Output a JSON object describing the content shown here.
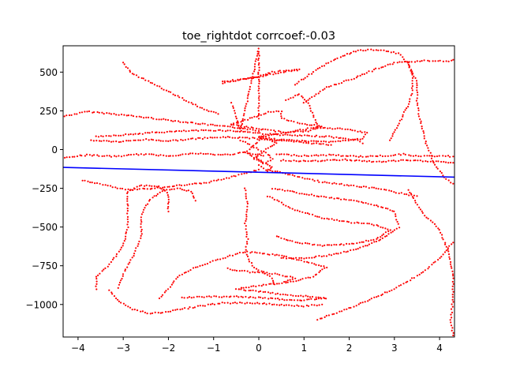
{
  "chart_data": {
    "type": "scatter",
    "title": "toe_rightdot corrcoef:-0.03",
    "xlabel": "",
    "ylabel": "",
    "xlim": [
      -4.33,
      4.33
    ],
    "ylim": [
      -1210,
      670
    ],
    "x_ticks": [
      -4,
      -3,
      -2,
      -1,
      0,
      1,
      2,
      3,
      4
    ],
    "x_tick_labels": [
      "−4",
      "−3",
      "−2",
      "−1",
      "0",
      "1",
      "2",
      "3",
      "4"
    ],
    "y_ticks": [
      -1000,
      -750,
      -500,
      -250,
      0,
      250,
      500
    ],
    "y_tick_labels": [
      "−1000",
      "−750",
      "−500",
      "−250",
      "0",
      "250",
      "500"
    ],
    "grid": false,
    "legend": "none",
    "colors": {
      "points": "#ff0000",
      "fit_line": "#0000ff",
      "axes": "#000000",
      "background": "#ffffff"
    },
    "fit_line": {
      "x": [
        -4.33,
        4.33
      ],
      "y": [
        -115,
        -178
      ]
    },
    "point_paths": [
      {
        "label": "upper horizontal band",
        "points": [
          [
            -4.3,
            215
          ],
          [
            -3.8,
            245
          ],
          [
            -3.2,
            230
          ],
          [
            -2.6,
            210
          ],
          [
            -2.0,
            190
          ],
          [
            -1.4,
            170
          ],
          [
            -0.8,
            150
          ],
          [
            -0.3,
            135
          ],
          [
            0.0,
            120
          ]
        ]
      },
      {
        "label": "band near 100",
        "points": [
          [
            -3.6,
            85
          ],
          [
            -3.0,
            95
          ],
          [
            -2.3,
            110
          ],
          [
            -1.6,
            120
          ],
          [
            -0.9,
            125
          ],
          [
            -0.3,
            115
          ],
          [
            0.2,
            100
          ],
          [
            0.8,
            90
          ],
          [
            1.5,
            85
          ],
          [
            2.2,
            60
          ],
          [
            2.3,
            40
          ]
        ]
      },
      {
        "label": "band near 60",
        "points": [
          [
            -3.7,
            60
          ],
          [
            -3.1,
            50
          ],
          [
            -2.5,
            65
          ],
          [
            -2.0,
            55
          ],
          [
            -1.4,
            70
          ],
          [
            -0.8,
            80
          ],
          [
            -0.2,
            75
          ],
          [
            0.4,
            60
          ],
          [
            1.0,
            45
          ],
          [
            1.6,
            30
          ]
        ]
      },
      {
        "label": "lower-left band near -40",
        "points": [
          [
            -4.3,
            -50
          ],
          [
            -3.8,
            -35
          ],
          [
            -3.2,
            -45
          ],
          [
            -2.6,
            -30
          ],
          [
            -2.0,
            -40
          ],
          [
            -1.4,
            -25
          ],
          [
            -0.8,
            -35
          ],
          [
            -0.3,
            -20
          ],
          [
            0.1,
            -40
          ]
        ]
      },
      {
        "label": "right band near -40",
        "points": [
          [
            0.4,
            -30
          ],
          [
            1.0,
            -40
          ],
          [
            1.6,
            -35
          ],
          [
            2.2,
            -45
          ],
          [
            2.8,
            -40
          ],
          [
            3.2,
            -30
          ],
          [
            3.6,
            -45
          ],
          [
            4.0,
            -40
          ],
          [
            4.3,
            -45
          ]
        ]
      },
      {
        "label": "right band near -70",
        "points": [
          [
            0.5,
            -70
          ],
          [
            1.2,
            -75
          ],
          [
            1.9,
            -65
          ],
          [
            2.6,
            -80
          ],
          [
            3.2,
            -70
          ],
          [
            3.8,
            -75
          ],
          [
            4.3,
            -85
          ]
        ]
      },
      {
        "label": "loop around 150",
        "points": [
          [
            -0.6,
            160
          ],
          [
            -0.2,
            200
          ],
          [
            0.2,
            240
          ],
          [
            0.5,
            250
          ],
          [
            0.5,
            200
          ],
          [
            0.9,
            170
          ],
          [
            1.4,
            150
          ],
          [
            1.1,
            120
          ],
          [
            0.6,
            110
          ],
          [
            0.1,
            130
          ],
          [
            -0.6,
            160
          ]
        ]
      },
      {
        "label": "loop around 100 right",
        "points": [
          [
            0.0,
            80
          ],
          [
            0.6,
            110
          ],
          [
            1.2,
            140
          ],
          [
            1.8,
            135
          ],
          [
            2.4,
            110
          ],
          [
            2.3,
            70
          ],
          [
            1.7,
            50
          ],
          [
            1.0,
            55
          ],
          [
            0.4,
            65
          ],
          [
            0.0,
            80
          ]
        ]
      },
      {
        "label": "upper ridge 400-520",
        "points": [
          [
            -0.8,
            430
          ],
          [
            -0.4,
            450
          ],
          [
            0.0,
            470
          ],
          [
            0.3,
            500
          ],
          [
            0.6,
            510
          ],
          [
            0.9,
            515
          ],
          [
            0.6,
            505
          ],
          [
            0.2,
            480
          ],
          [
            -0.3,
            455
          ],
          [
            -0.8,
            440
          ]
        ]
      },
      {
        "label": "vertical spine",
        "points": [
          [
            -0.3,
            -250
          ],
          [
            -0.25,
            -370
          ],
          [
            -0.3,
            -480
          ],
          [
            -0.25,
            -580
          ],
          [
            -0.3,
            -660
          ],
          [
            -0.2,
            -720
          ],
          [
            -0.1,
            -760
          ],
          [
            0.1,
            -790
          ],
          [
            0.3,
            -830
          ],
          [
            0.35,
            -870
          ]
        ]
      },
      {
        "label": "lower bundle",
        "points": [
          [
            -0.7,
            -770
          ],
          [
            -0.2,
            -790
          ],
          [
            0.3,
            -800
          ],
          [
            0.8,
            -830
          ],
          [
            0.5,
            -860
          ],
          [
            0.0,
            -880
          ],
          [
            -0.5,
            -900
          ],
          [
            0.1,
            -920
          ],
          [
            0.7,
            -940
          ],
          [
            1.2,
            -950
          ],
          [
            1.5,
            -960
          ],
          [
            0.9,
            -975
          ],
          [
            0.2,
            -960
          ],
          [
            -0.5,
            -950
          ],
          [
            -1.1,
            -950
          ],
          [
            -1.7,
            -955
          ]
        ]
      },
      {
        "label": "outer lower loop",
        "points": [
          [
            -3.3,
            -910
          ],
          [
            -3.1,
            -980
          ],
          [
            -2.8,
            -1030
          ],
          [
            -2.4,
            -1060
          ],
          [
            -1.9,
            -1040
          ],
          [
            -1.3,
            -1010
          ],
          [
            -0.8,
            -990
          ],
          [
            -0.2,
            -990
          ],
          [
            0.4,
            -1000
          ],
          [
            1.0,
            -1010
          ],
          [
            1.4,
            -1000
          ]
        ]
      },
      {
        "label": "left arch",
        "points": [
          [
            -3.6,
            -900
          ],
          [
            -3.6,
            -820
          ],
          [
            -3.3,
            -740
          ],
          [
            -3.0,
            -620
          ],
          [
            -2.9,
            -500
          ],
          [
            -2.9,
            -380
          ],
          [
            -2.9,
            -270
          ],
          [
            -2.6,
            -230
          ],
          [
            -2.2,
            -240
          ],
          [
            -2.0,
            -290
          ],
          [
            -2.0,
            -400
          ]
        ]
      },
      {
        "label": "inner left arch",
        "points": [
          [
            -3.1,
            -890
          ],
          [
            -3.0,
            -800
          ],
          [
            -2.8,
            -700
          ],
          [
            -2.6,
            -560
          ],
          [
            -2.6,
            -420
          ],
          [
            -2.4,
            -320
          ],
          [
            -2.1,
            -260
          ],
          [
            -1.8,
            -250
          ],
          [
            -1.5,
            -270
          ],
          [
            -1.4,
            -330
          ]
        ]
      },
      {
        "label": "lower-left inner loop",
        "points": [
          [
            -2.2,
            -960
          ],
          [
            -2.0,
            -900
          ],
          [
            -1.8,
            -820
          ],
          [
            -1.4,
            -760
          ],
          [
            -0.8,
            -700
          ],
          [
            -0.3,
            -660
          ],
          [
            0.4,
            -680
          ],
          [
            1.0,
            -720
          ],
          [
            1.5,
            -760
          ],
          [
            1.2,
            -820
          ],
          [
            0.6,
            -860
          ]
        ]
      },
      {
        "label": "right lobe 1",
        "points": [
          [
            0.3,
            -250
          ],
          [
            0.9,
            -280
          ],
          [
            1.5,
            -310
          ],
          [
            2.1,
            -330
          ],
          [
            2.6,
            -360
          ],
          [
            3.0,
            -400
          ],
          [
            3.1,
            -500
          ],
          [
            2.7,
            -580
          ],
          [
            2.2,
            -640
          ],
          [
            1.6,
            -680
          ],
          [
            1.0,
            -700
          ],
          [
            0.5,
            -700
          ]
        ]
      },
      {
        "label": "right lobe 2",
        "points": [
          [
            0.2,
            -300
          ],
          [
            0.8,
            -390
          ],
          [
            1.4,
            -440
          ],
          [
            2.0,
            -470
          ],
          [
            2.5,
            -480
          ],
          [
            2.9,
            -520
          ],
          [
            2.6,
            -580
          ],
          [
            2.0,
            -610
          ],
          [
            1.4,
            -620
          ],
          [
            0.8,
            -600
          ],
          [
            0.4,
            -560
          ]
        ]
      },
      {
        "label": "outer right arc",
        "points": [
          [
            1.3,
            -1100
          ],
          [
            2.2,
            -1000
          ],
          [
            3.0,
            -900
          ],
          [
            3.6,
            -800
          ],
          [
            4.0,
            -700
          ],
          [
            4.3,
            -600
          ]
        ]
      },
      {
        "label": "right edge arc",
        "points": [
          [
            3.3,
            -260
          ],
          [
            3.6,
            -400
          ],
          [
            4.0,
            -520
          ],
          [
            4.2,
            -660
          ],
          [
            4.3,
            -800
          ],
          [
            4.3,
            -950
          ],
          [
            4.25,
            -1100
          ],
          [
            4.3,
            -1200
          ]
        ]
      },
      {
        "label": "upper right arc",
        "points": [
          [
            0.8,
            420
          ],
          [
            1.3,
            520
          ],
          [
            1.8,
            600
          ],
          [
            2.2,
            640
          ],
          [
            2.7,
            645
          ],
          [
            3.1,
            620
          ],
          [
            3.3,
            560
          ],
          [
            3.4,
            480
          ],
          [
            3.4,
            380
          ],
          [
            3.3,
            280
          ],
          [
            3.1,
            170
          ],
          [
            2.9,
            60
          ]
        ]
      },
      {
        "label": "outer upper right arc",
        "points": [
          [
            1.0,
            300
          ],
          [
            1.5,
            400
          ],
          [
            2.1,
            460
          ],
          [
            2.6,
            520
          ],
          [
            3.0,
            560
          ],
          [
            3.5,
            570
          ],
          [
            3.9,
            575
          ],
          [
            4.2,
            570
          ],
          [
            4.3,
            580
          ]
        ]
      },
      {
        "label": "right side descending",
        "points": [
          [
            3.3,
            560
          ],
          [
            3.5,
            430
          ],
          [
            3.5,
            300
          ],
          [
            3.6,
            150
          ],
          [
            3.7,
            40
          ],
          [
            3.9,
            -100
          ],
          [
            4.1,
            -180
          ],
          [
            4.3,
            -220
          ]
        ]
      },
      {
        "label": "inner right upper",
        "points": [
          [
            0.6,
            320
          ],
          [
            0.9,
            360
          ],
          [
            1.1,
            300
          ],
          [
            1.2,
            220
          ],
          [
            1.3,
            150
          ]
        ]
      },
      {
        "label": "upper left scattered",
        "points": [
          [
            -3.0,
            560
          ],
          [
            -2.8,
            490
          ],
          [
            -2.3,
            420
          ],
          [
            -1.9,
            360
          ],
          [
            -1.5,
            300
          ],
          [
            -1.2,
            260
          ],
          [
            -0.9,
            230
          ]
        ]
      },
      {
        "label": "vertical upper lines",
        "points": [
          [
            -0.6,
            300
          ],
          [
            -0.5,
            200
          ],
          [
            -0.4,
            120
          ],
          [
            0.0,
            650
          ],
          [
            0.0,
            560
          ],
          [
            0.0,
            470
          ],
          [
            0.0,
            380
          ],
          [
            0.0,
            300
          ],
          [
            0.0,
            200
          ]
        ]
      },
      {
        "label": "fan from center",
        "points": [
          [
            0.0,
            -130
          ],
          [
            -0.5,
            -170
          ],
          [
            -1.1,
            -210
          ],
          [
            -1.7,
            -230
          ],
          [
            -2.3,
            -250
          ],
          [
            -2.9,
            -260
          ],
          [
            -3.4,
            -230
          ],
          [
            -3.9,
            -200
          ]
        ]
      },
      {
        "label": "fan from center right",
        "points": [
          [
            0.2,
            -130
          ],
          [
            0.8,
            -170
          ],
          [
            1.4,
            -210
          ],
          [
            2.0,
            -230
          ],
          [
            2.6,
            -250
          ],
          [
            3.1,
            -280
          ],
          [
            3.5,
            -300
          ]
        ]
      },
      {
        "label": "central cluster",
        "points": [
          [
            -0.4,
            60
          ],
          [
            -0.2,
            30
          ],
          [
            0.0,
            0
          ],
          [
            0.2,
            -30
          ],
          [
            0.3,
            -60
          ],
          [
            0.1,
            -90
          ],
          [
            -0.1,
            -60
          ],
          [
            0.2,
            10
          ],
          [
            0.4,
            40
          ],
          [
            0.1,
            80
          ],
          [
            -0.3,
            -20
          ],
          [
            0.3,
            -110
          ],
          [
            0.2,
            -140
          ],
          [
            0.0,
            -100
          ]
        ]
      }
    ]
  }
}
